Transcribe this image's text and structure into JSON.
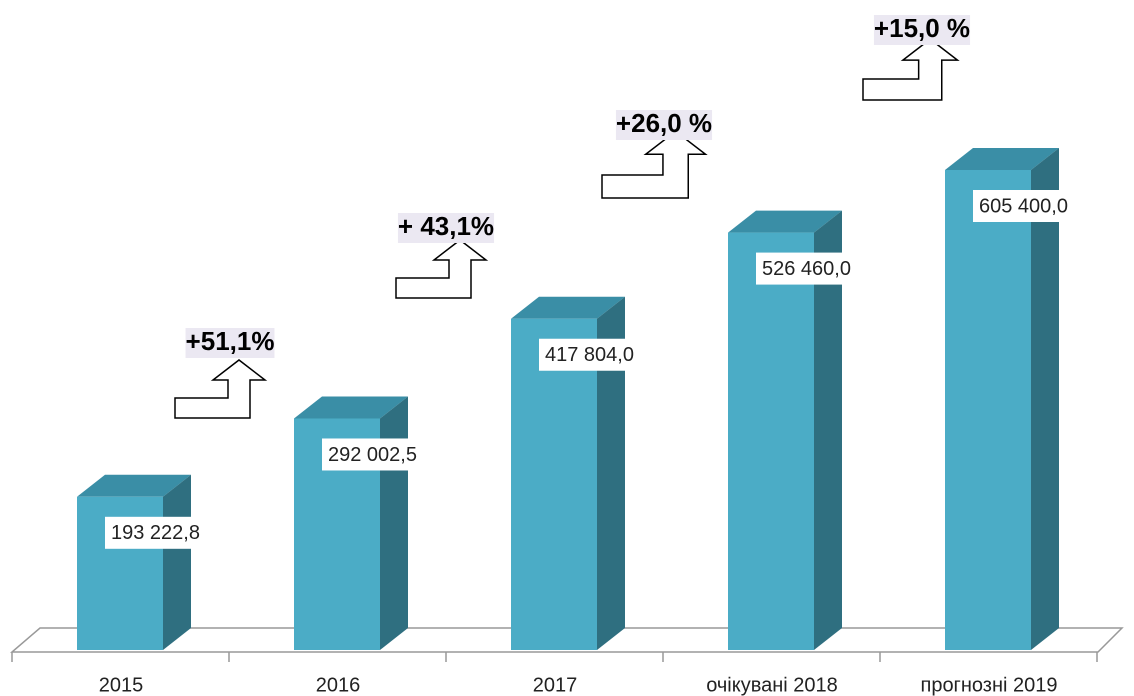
{
  "chart_data": {
    "type": "bar3d",
    "categories": [
      "2015",
      "2016",
      "2017",
      "очікувані 2018",
      "прогнозні 2019"
    ],
    "values": [
      193222.8,
      292002.5,
      417804.0,
      526460.0,
      605400.0
    ],
    "value_labels": [
      "193 222,8",
      "292 002,5",
      "417 804,0",
      "526 460,0",
      "605 400,0"
    ],
    "annotations": [
      "+51,1%",
      "+ 43,1%",
      "+26,0 %",
      "+15,0 %"
    ],
    "color": "#4bacc6"
  }
}
